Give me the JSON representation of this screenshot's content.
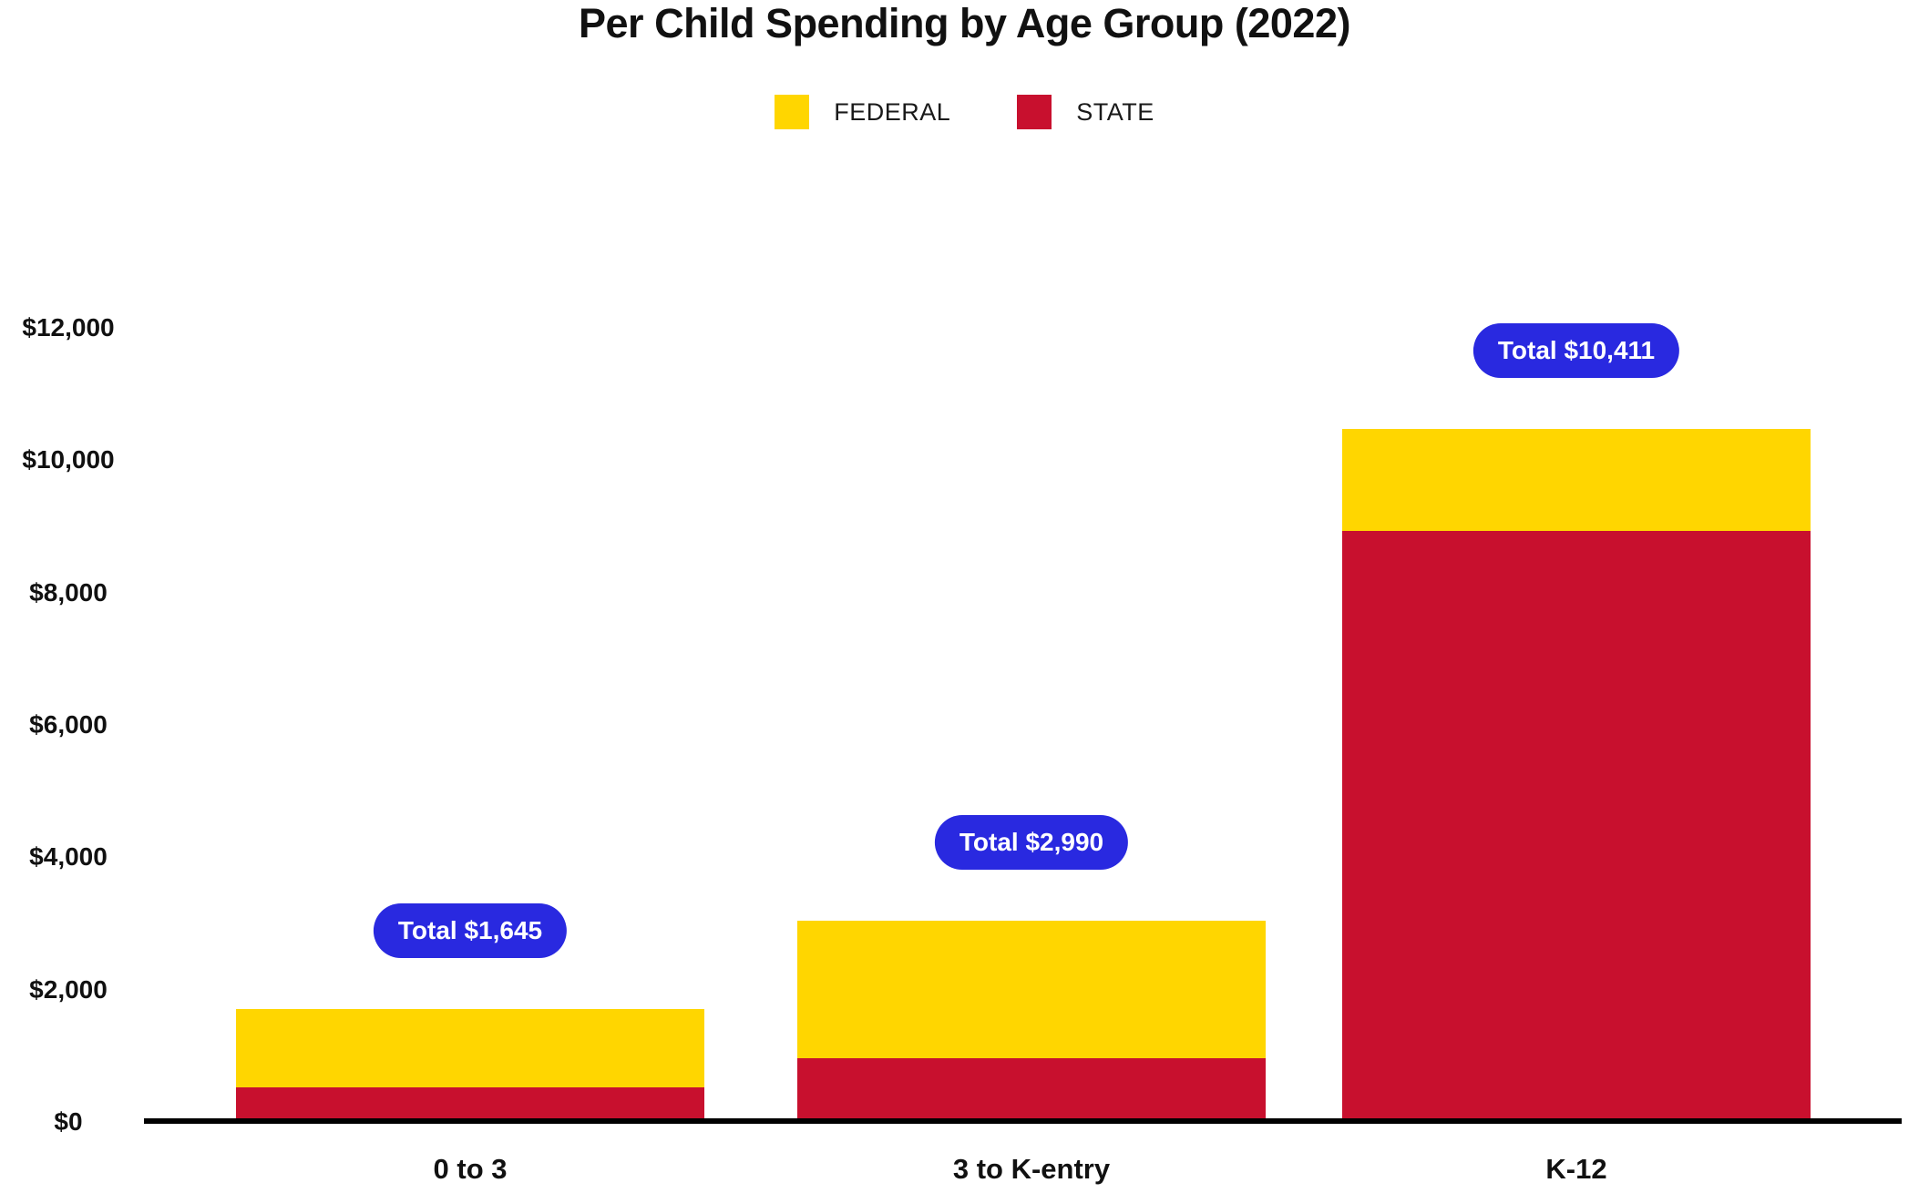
{
  "title": "Per Child Spending by Age Group (2022)",
  "colors": {
    "federal": "#FFD600",
    "state": "#C8102E",
    "total_badge": "#2929E0",
    "badge_text": "#FFFFFF",
    "text": "#111111",
    "axis": "#000000"
  },
  "legend": {
    "items": [
      {
        "label": "FEDERAL",
        "color": "#FFD600"
      },
      {
        "label": "STATE",
        "color": "#C8102E"
      }
    ]
  },
  "chart_data": {
    "type": "bar",
    "stacked": true,
    "title": "Per Child Spending by Age Group (2022)",
    "categories": [
      "0 to 3",
      "3 to K-entry",
      "K-12"
    ],
    "series": [
      {
        "name": "FEDERAL",
        "color": "#FFD600",
        "stack_position": "top",
        "values": [
          1171,
          2075,
          1538
        ]
      },
      {
        "name": "STATE",
        "color": "#C8102E",
        "stack_position": "bottom",
        "values": [
          474,
          915,
          8873
        ]
      }
    ],
    "totals": [
      1645,
      2990,
      10411
    ],
    "total_labels": [
      "Total $1,645",
      "Total $2,990",
      "Total $10,411"
    ],
    "xlabel": "",
    "ylabel": "",
    "ylim": [
      0,
      12000
    ],
    "yticks": [
      {
        "label": "$0",
        "value": 0
      },
      {
        "label": "$2,000",
        "value": 2000
      },
      {
        "label": "$4,000",
        "value": 4000
      },
      {
        "label": "$6,000",
        "value": 6000
      },
      {
        "label": "$8,000",
        "value": 8000
      },
      {
        "label": "$10,000",
        "value": 10000
      },
      {
        "label": "$12,000",
        "value": 12000
      }
    ],
    "grid": false,
    "legend_position": "top",
    "total_badge_color": "#2929E0"
  }
}
